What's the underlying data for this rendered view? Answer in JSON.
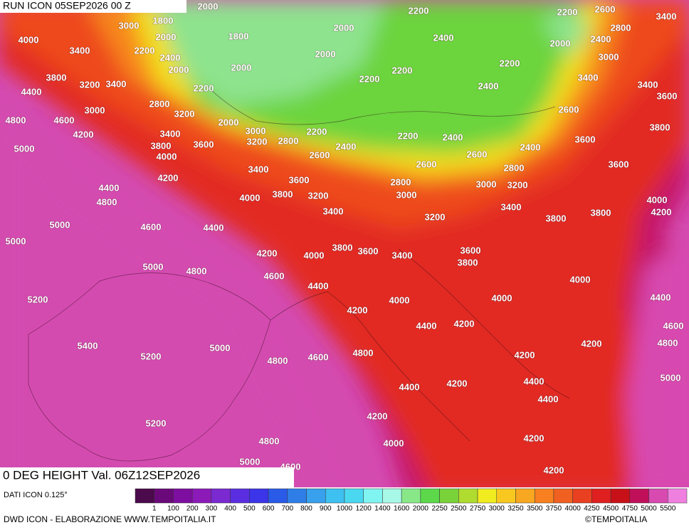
{
  "header": {
    "run": "RUN ICON 05SEP2026 00 Z",
    "field": "0 DEG HEIGHT Val. 06Z12SEP2026"
  },
  "map": {
    "contour_labels": [
      2000,
      3000,
      1800,
      2000,
      2200,
      2400,
      2000,
      1800,
      2000,
      2200,
      2200,
      2600,
      3400,
      2800,
      2400,
      2000,
      2400,
      2000,
      2000,
      2200,
      2200,
      2200,
      3000,
      4000,
      3400,
      3800,
      3200,
      3400,
      4400,
      2200,
      2800,
      3000,
      3400,
      3400,
      3600,
      2400,
      4800,
      4600,
      3200,
      2600,
      4200,
      3400,
      2000,
      3000,
      2200,
      3200,
      2800,
      2400,
      2200,
      2400,
      3800,
      5000,
      3800,
      3600,
      2600,
      3600,
      2400,
      2600,
      4000,
      3400,
      2600,
      2800,
      3600,
      4200,
      3600,
      2800,
      3000,
      3200,
      4400,
      3800,
      3000,
      4000,
      3200,
      4800,
      4000,
      3400,
      3400,
      4200,
      3800,
      3800,
      3200,
      5000,
      4600,
      4400,
      5000,
      3800,
      3600,
      3400,
      3600,
      4200,
      4000,
      3800,
      5000,
      4800,
      4600,
      4000,
      4400,
      5200,
      4000,
      4000,
      4400,
      4200,
      4400,
      4200,
      4600,
      5400,
      5000,
      4200,
      4800,
      4800,
      5200,
      4600,
      4800,
      4200,
      5000,
      4400,
      4200,
      4400,
      4400,
      4200,
      5200,
      4800,
      4200,
      4000,
      5000,
      4200,
      4600
    ]
  },
  "legend": {
    "source": "DATI ICON 0.125°",
    "colors": [
      "#4b0a4b",
      "#6a0a7a",
      "#7d0ea0",
      "#8c1ab8",
      "#7a2ad0",
      "#5a2ee0",
      "#3b34e8",
      "#2a5ae8",
      "#2f7ee8",
      "#38a0ec",
      "#3ec0f0",
      "#4ad8f0",
      "#80f4f0",
      "#a8f8e8",
      "#88e888",
      "#5cd84a",
      "#7ad23a",
      "#b0dc30",
      "#f0ec20",
      "#f8c820",
      "#f8a820",
      "#f88020",
      "#f06020",
      "#e84020",
      "#e02020",
      "#c81018",
      "#c0105a",
      "#d84ab0",
      "#f080e0"
    ],
    "labels": [
      1,
      100,
      200,
      300,
      400,
      500,
      600,
      700,
      800,
      900,
      1000,
      1200,
      1400,
      1600,
      2000,
      2250,
      2500,
      2750,
      3000,
      3250,
      3500,
      3750,
      4000,
      4250,
      4500,
      4750,
      5000,
      5500
    ]
  },
  "footer": {
    "credit": "DWD ICON - ELABORAZIONE WWW.TEMPOITALIA.IT",
    "copyright": "©TEMPOITALIA"
  }
}
